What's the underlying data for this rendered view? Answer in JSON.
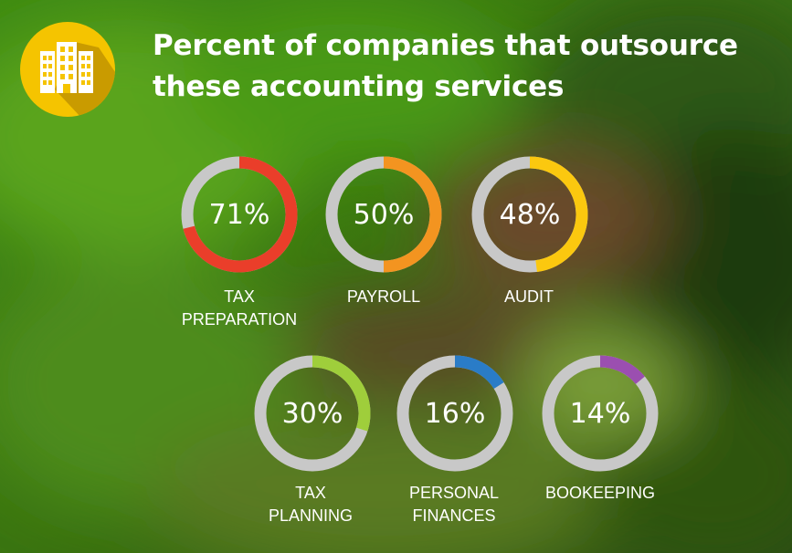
{
  "title": {
    "line1": "Percent of companies that outsource",
    "line2": "these accounting services"
  },
  "colors": {
    "track": "#c8c8c8",
    "logo_circle": "#f5c400",
    "logo_shadow": "#b98e00",
    "tax_preparation": "#ea3e2a",
    "payroll": "#f39420",
    "audit": "#fbc80f",
    "tax_planning": "#9fce3b",
    "personal_finances": "#2a7cc7",
    "bookeeping": "#9b4fb0"
  },
  "chart_data": {
    "type": "donut",
    "title": "Percent of companies that outsource these accounting services",
    "unit": "%",
    "items": [
      {
        "label_lines": [
          "TAX",
          "PREPARATION"
        ],
        "value": 71,
        "value_text": "71%",
        "color": "#ea3e2a"
      },
      {
        "label_lines": [
          "PAYROLL"
        ],
        "value": 50,
        "value_text": "50%",
        "color": "#f39420"
      },
      {
        "label_lines": [
          "AUDIT"
        ],
        "value": 48,
        "value_text": "48%",
        "color": "#fbc80f"
      },
      {
        "label_lines": [
          "TAX",
          "PLANNING"
        ],
        "value": 30,
        "value_text": "30%",
        "color": "#9fce3b"
      },
      {
        "label_lines": [
          "PERSONAL",
          "FINANCES"
        ],
        "value": 16,
        "value_text": "16%",
        "color": "#2a7cc7"
      },
      {
        "label_lines": [
          "BOOKEEPING"
        ],
        "value": 14,
        "value_text": "14%",
        "color": "#9b4fb0"
      }
    ]
  },
  "logo": {
    "icon": "building-icon"
  }
}
